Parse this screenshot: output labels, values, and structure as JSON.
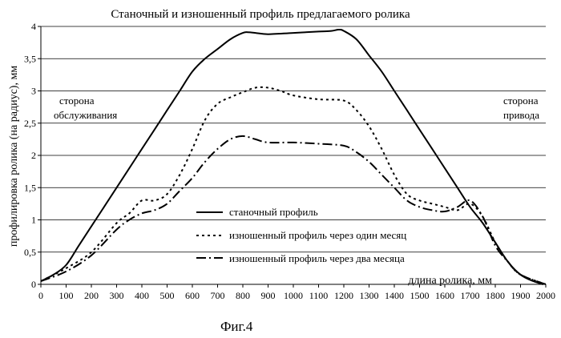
{
  "chart_data": {
    "type": "line",
    "title": "Станочный и изношенный профиль предлагаемого ролика",
    "xlabel": "длина ролика, мм",
    "ylabel": "профилировка ролика (на радиус), мм",
    "xlim": [
      0,
      2000
    ],
    "ylim": [
      0,
      4
    ],
    "x_ticks": [
      0,
      100,
      200,
      300,
      400,
      500,
      600,
      700,
      800,
      900,
      1000,
      1100,
      1200,
      1300,
      1400,
      1500,
      1600,
      1700,
      1800,
      1900,
      2000
    ],
    "y_ticks": [
      "0",
      "0,5",
      "1",
      "1,5",
      "2",
      "2,5",
      "3",
      "3,5",
      "4"
    ],
    "y_tick_values": [
      0,
      0.5,
      1,
      1.5,
      2,
      2.5,
      3,
      3.5,
      4
    ],
    "grid": "horizontal",
    "legend_position": "center",
    "annotations": {
      "left_line1": "сторона",
      "left_line2": "обслуживания",
      "right_line1": "сторона",
      "right_line2": "привода"
    },
    "series": [
      {
        "name": "станочный профиль",
        "style": "solid",
        "x": [
          0,
          50,
          100,
          150,
          200,
          250,
          300,
          350,
          400,
          450,
          500,
          550,
          600,
          650,
          700,
          750,
          800,
          820,
          850,
          900,
          1000,
          1100,
          1150,
          1180,
          1200,
          1250,
          1300,
          1350,
          1400,
          1450,
          1500,
          1550,
          1600,
          1650,
          1700,
          1750,
          1800,
          1850,
          1900,
          1950,
          1990
        ],
        "y": [
          0.05,
          0.15,
          0.3,
          0.6,
          0.9,
          1.2,
          1.5,
          1.8,
          2.1,
          2.4,
          2.7,
          3.0,
          3.3,
          3.5,
          3.65,
          3.8,
          3.9,
          3.91,
          3.9,
          3.88,
          3.9,
          3.92,
          3.93,
          3.95,
          3.93,
          3.8,
          3.55,
          3.3,
          3.0,
          2.7,
          2.4,
          2.1,
          1.8,
          1.5,
          1.2,
          0.95,
          0.65,
          0.35,
          0.15,
          0.05,
          0.0
        ]
      },
      {
        "name": "изношенный профиль через один месяц",
        "style": "dotted",
        "x": [
          0,
          100,
          200,
          300,
          350,
          400,
          450,
          500,
          550,
          600,
          650,
          700,
          750,
          800,
          850,
          900,
          950,
          1000,
          1100,
          1200,
          1250,
          1300,
          1350,
          1400,
          1450,
          1500,
          1550,
          1600,
          1650,
          1700,
          1750,
          1800,
          1850,
          1900,
          2000
        ],
        "y": [
          0.05,
          0.25,
          0.5,
          0.95,
          1.1,
          1.3,
          1.3,
          1.4,
          1.7,
          2.1,
          2.55,
          2.8,
          2.9,
          2.98,
          3.05,
          3.05,
          3.0,
          2.93,
          2.87,
          2.85,
          2.7,
          2.45,
          2.1,
          1.7,
          1.4,
          1.3,
          1.25,
          1.2,
          1.15,
          1.25,
          1.05,
          0.65,
          0.35,
          0.15,
          0.0
        ]
      },
      {
        "name": "изношенный профиль через два месяца",
        "style": "dash-dot",
        "x": [
          0,
          100,
          200,
          300,
          350,
          400,
          450,
          500,
          550,
          600,
          650,
          700,
          750,
          800,
          850,
          900,
          1000,
          1100,
          1200,
          1250,
          1300,
          1350,
          1400,
          1450,
          1500,
          1550,
          1600,
          1650,
          1700,
          1750,
          1800,
          1850,
          1900,
          2000
        ],
        "y": [
          0.05,
          0.2,
          0.45,
          0.85,
          1.0,
          1.1,
          1.15,
          1.25,
          1.45,
          1.65,
          1.9,
          2.1,
          2.25,
          2.3,
          2.25,
          2.2,
          2.2,
          2.18,
          2.15,
          2.05,
          1.9,
          1.7,
          1.5,
          1.3,
          1.2,
          1.15,
          1.13,
          1.2,
          1.3,
          1.05,
          0.6,
          0.35,
          0.15,
          0.0
        ]
      }
    ]
  },
  "caption": "Фиг.4"
}
